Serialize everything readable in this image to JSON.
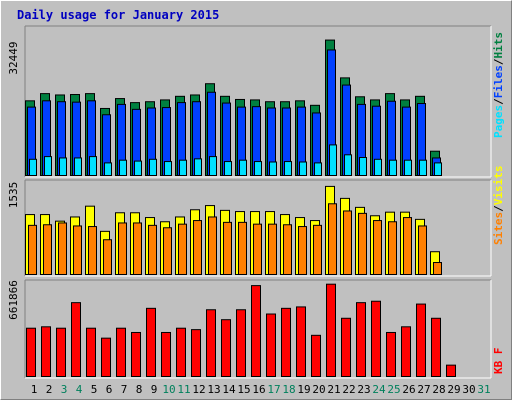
{
  "title": "Daily usage for January 2015",
  "colors": {
    "hits": "#008040",
    "files": "#0040ff",
    "pages": "#00e0ff",
    "visits": "#ffff00",
    "sites": "#ff8000",
    "kbytes": "#ff0000",
    "panel_bg": "#c0c0c0",
    "title": "#0000c0"
  },
  "chart_data": [
    {
      "type": "bar",
      "ymax_label": "32449",
      "ylim": [
        0,
        32449
      ],
      "legend": [
        {
          "name": "Pages",
          "color": "#00e0ff"
        },
        {
          "name": "Files",
          "color": "#0040ff"
        },
        {
          "name": "Hits",
          "color": "#008040"
        }
      ],
      "categories": [
        "1",
        "2",
        "3",
        "4",
        "5",
        "6",
        "7",
        "8",
        "9",
        "10",
        "11",
        "12",
        "13",
        "14",
        "15",
        "16",
        "17",
        "18",
        "19",
        "20",
        "21",
        "22",
        "23",
        "24",
        "25",
        "26",
        "27",
        "28",
        "29"
      ],
      "series": [
        {
          "name": "Hits",
          "values": [
            16600,
            18200,
            17900,
            18000,
            18200,
            14900,
            17100,
            16200,
            16400,
            16800,
            17600,
            17900,
            20400,
            17600,
            16900,
            16800,
            16400,
            16400,
            16600,
            15600,
            30100,
            21700,
            17500,
            16800,
            18200,
            16800,
            17600,
            5400,
            0
          ]
        },
        {
          "name": "Files",
          "values": [
            15200,
            16600,
            16400,
            16300,
            16600,
            13500,
            15800,
            14700,
            15000,
            15100,
            16200,
            16400,
            18500,
            16100,
            15200,
            15300,
            15000,
            15000,
            15200,
            13900,
            27900,
            20100,
            15800,
            15400,
            16500,
            15200,
            16000,
            3900,
            0
          ]
        },
        {
          "name": "Pages",
          "values": [
            3600,
            4200,
            3900,
            3900,
            4200,
            2800,
            3400,
            3200,
            3600,
            3100,
            3400,
            3700,
            4200,
            3100,
            3400,
            3100,
            3000,
            3100,
            3000,
            2800,
            6800,
            4600,
            4000,
            3600,
            3400,
            3400,
            3400,
            2800,
            0
          ]
        }
      ]
    },
    {
      "type": "bar",
      "ymax_label": "1535",
      "ylim": [
        0,
        1535
      ],
      "legend": [
        {
          "name": "Sites",
          "color": "#ff8000"
        },
        {
          "name": "Visits",
          "color": "#ffff00"
        }
      ],
      "categories": [
        "1",
        "2",
        "3",
        "4",
        "5",
        "6",
        "7",
        "8",
        "9",
        "10",
        "11",
        "12",
        "13",
        "14",
        "15",
        "16",
        "17",
        "18",
        "19",
        "20",
        "21",
        "22",
        "23",
        "24",
        "25",
        "26",
        "27",
        "28",
        "29"
      ],
      "series": [
        {
          "name": "Visits",
          "values": [
            1000,
            1000,
            890,
            960,
            1140,
            720,
            1030,
            1030,
            950,
            880,
            960,
            1080,
            1150,
            1070,
            1050,
            1050,
            1050,
            1000,
            950,
            900,
            1470,
            1270,
            1120,
            980,
            1040,
            1040,
            920,
            380,
            0
          ]
        },
        {
          "name": "Sites",
          "values": [
            820,
            830,
            860,
            810,
            800,
            580,
            860,
            860,
            820,
            780,
            840,
            900,
            960,
            870,
            870,
            840,
            840,
            830,
            800,
            820,
            1180,
            1060,
            1020,
            900,
            880,
            950,
            810,
            200,
            0
          ]
        }
      ]
    },
    {
      "type": "bar",
      "ymax_label": "661866",
      "ylim": [
        0,
        661866
      ],
      "legend": [
        {
          "name": "KBytes",
          "color": "#ff0000"
        }
      ],
      "categories": [
        "1",
        "2",
        "3",
        "4",
        "5",
        "6",
        "7",
        "8",
        "9",
        "10",
        "11",
        "12",
        "13",
        "14",
        "15",
        "16",
        "17",
        "18",
        "19",
        "20",
        "21",
        "22",
        "23",
        "24",
        "25",
        "26",
        "27",
        "28",
        "29"
      ],
      "series": [
        {
          "name": "KBytes",
          "values": [
            340000,
            350000,
            340000,
            520000,
            340000,
            270000,
            340000,
            310000,
            480000,
            310000,
            340000,
            330000,
            470000,
            400000,
            470000,
            640000,
            440000,
            480000,
            490000,
            290000,
            650000,
            410000,
            520000,
            530000,
            310000,
            350000,
            510000,
            410000,
            80000
          ]
        }
      ]
    }
  ],
  "axis": {
    "day_labels": [
      "1",
      "2",
      "3",
      "4",
      "5",
      "6",
      "7",
      "8",
      "9",
      "10",
      "11",
      "12",
      "13",
      "14",
      "15",
      "16",
      "17",
      "18",
      "19",
      "20",
      "21",
      "22",
      "23",
      "24",
      "25",
      "26",
      "27",
      "28",
      "29",
      "30",
      "31"
    ],
    "weekend_days": [
      "3",
      "4",
      "10",
      "11",
      "17",
      "18",
      "24",
      "25",
      "31"
    ],
    "weekday_color": "#000000",
    "weekend_color": "#00805c"
  },
  "side_labels": {
    "top": [
      {
        "text": "Pages",
        "color": "#00e0ff"
      },
      {
        "text": "/",
        "color": "#000000"
      },
      {
        "text": "Files",
        "color": "#0040ff"
      },
      {
        "text": "/",
        "color": "#000000"
      },
      {
        "text": "Hits",
        "color": "#008040"
      }
    ],
    "middle": [
      {
        "text": "Sites",
        "color": "#ff8000"
      },
      {
        "text": "/",
        "color": "#000000"
      },
      {
        "text": "Visits",
        "color": "#ffff00"
      }
    ],
    "bottom": [
      {
        "text": "KB F",
        "color": "#ff0000"
      }
    ]
  }
}
